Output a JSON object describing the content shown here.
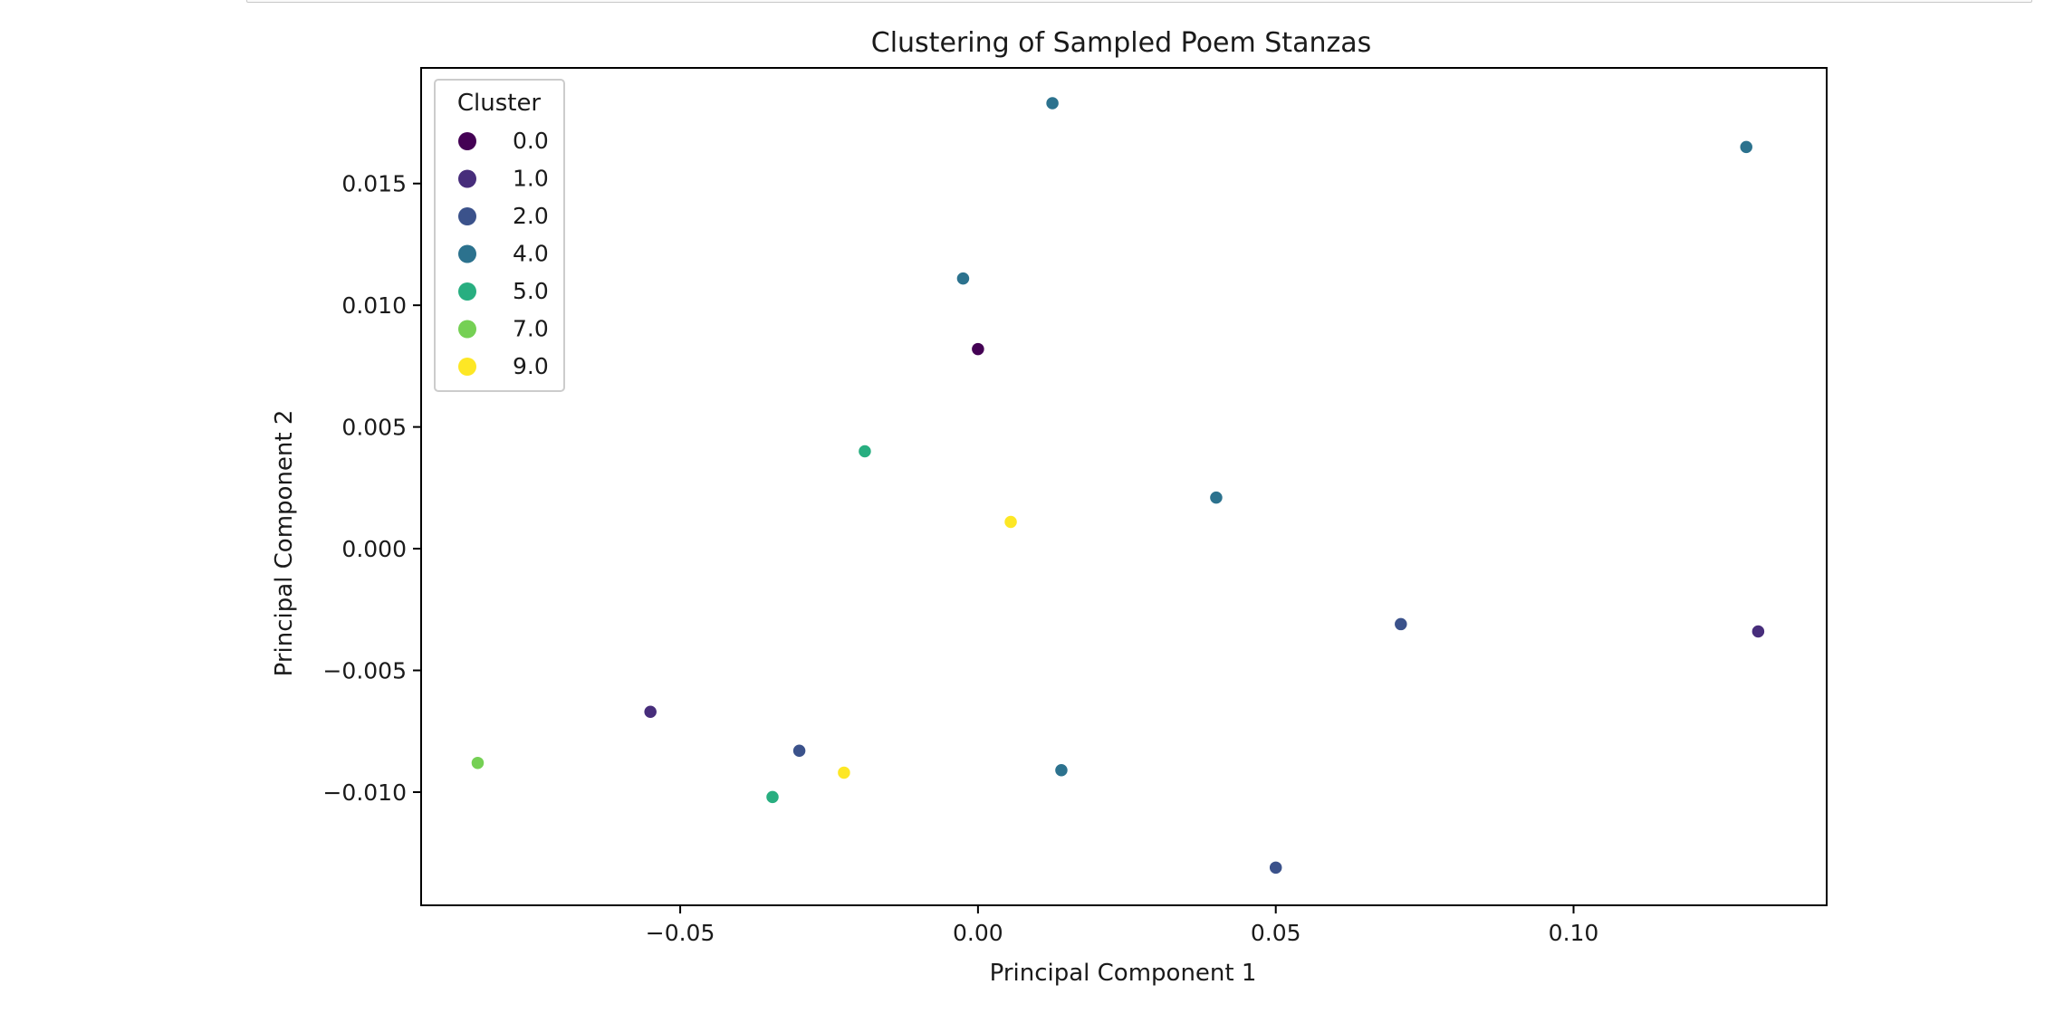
{
  "chart_data": {
    "type": "scatter",
    "title": "Clustering of Sampled Poem Stanzas",
    "xlabel": "Principal Component 1",
    "ylabel": "Principal Component 2",
    "xlim": [
      -0.0935,
      0.1425
    ],
    "ylim": [
      -0.01465,
      0.01975
    ],
    "xticks": [
      -0.05,
      0.0,
      0.05,
      0.1
    ],
    "xtick_labels": [
      "−0.05",
      "0.00",
      "0.05",
      "0.10"
    ],
    "yticks": [
      -0.01,
      -0.005,
      0.0,
      0.005,
      0.01,
      0.015
    ],
    "ytick_labels": [
      "−0.010",
      "−0.005",
      "0.000",
      "0.005",
      "0.010",
      "0.015"
    ],
    "grid": false,
    "legend": {
      "title": "Cluster",
      "placement": "top-left",
      "entries": [
        {
          "label": "0.0",
          "color": "#440154"
        },
        {
          "label": "1.0",
          "color": "#472d7b"
        },
        {
          "label": "2.0",
          "color": "#3b528b"
        },
        {
          "label": "4.0",
          "color": "#2c728e"
        },
        {
          "label": "5.0",
          "color": "#28ae80"
        },
        {
          "label": "7.0",
          "color": "#75d054"
        },
        {
          "label": "9.0",
          "color": "#fde725"
        }
      ]
    },
    "series": [
      {
        "name": "0.0",
        "color": "#440154",
        "points": [
          [
            0.0,
            0.0082
          ]
        ]
      },
      {
        "name": "1.0",
        "color": "#472d7b",
        "points": [
          [
            -0.055,
            -0.0067
          ],
          [
            0.131,
            -0.0034
          ]
        ]
      },
      {
        "name": "2.0",
        "color": "#3b528b",
        "points": [
          [
            -0.03,
            -0.0083
          ],
          [
            0.071,
            -0.0031
          ],
          [
            0.05,
            -0.0131
          ]
        ]
      },
      {
        "name": "4.0",
        "color": "#2c728e",
        "points": [
          [
            0.0125,
            0.0183
          ],
          [
            0.129,
            0.0165
          ],
          [
            -0.0025,
            0.0111
          ],
          [
            0.04,
            0.0021
          ],
          [
            0.014,
            -0.0091
          ]
        ]
      },
      {
        "name": "5.0",
        "color": "#28ae80",
        "points": [
          [
            -0.019,
            0.004
          ],
          [
            -0.0345,
            -0.0102
          ]
        ]
      },
      {
        "name": "7.0",
        "color": "#75d054",
        "points": [
          [
            -0.084,
            -0.0088
          ]
        ]
      },
      {
        "name": "9.0",
        "color": "#fde725",
        "points": [
          [
            0.0055,
            0.0011
          ],
          [
            -0.0225,
            -0.0092
          ]
        ]
      }
    ]
  }
}
